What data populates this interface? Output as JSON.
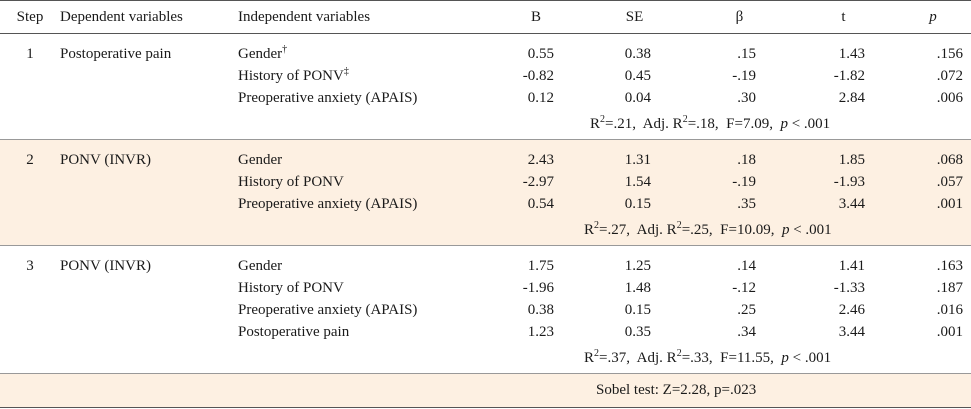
{
  "headers": {
    "step": "Step",
    "dependent": "Dependent variables",
    "independent": "Independent variables",
    "b": "B",
    "se": "SE",
    "beta": "β",
    "t": "t",
    "p": "p"
  },
  "steps": [
    {
      "step": "1",
      "dependent": "Postoperative pain",
      "rows": [
        {
          "iv": "Gender",
          "mark": "†",
          "b": "0.55",
          "se": "0.38",
          "beta": ".15",
          "t": "1.43",
          "p": ".156"
        },
        {
          "iv": "History of PONV",
          "mark": "‡",
          "b": "-0.82",
          "se": "0.45",
          "beta": "-.19",
          "t": "-1.82",
          "p": ".072"
        },
        {
          "iv": "Preoperative anxiety (APAIS)",
          "mark": "",
          "b": "0.12",
          "se": "0.04",
          "beta": ".30",
          "t": "2.84",
          "p": ".006"
        }
      ],
      "summary": {
        "r2": "=.21,",
        "adj_label": "Adj. R",
        "adj_r2": "=.18,",
        "f": "F=7.09,",
        "p_label": "p",
        "p_val": "< .001"
      }
    },
    {
      "step": "2",
      "dependent": "PONV (INVR)",
      "rows": [
        {
          "iv": "Gender",
          "mark": "",
          "b": "2.43",
          "se": "1.31",
          "beta": ".18",
          "t": "1.85",
          "p": ".068"
        },
        {
          "iv": "History of PONV",
          "mark": "",
          "b": "-2.97",
          "se": "1.54",
          "beta": "-.19",
          "t": "-1.93",
          "p": ".057"
        },
        {
          "iv": "Preoperative anxiety (APAIS)",
          "mark": "",
          "b": "0.54",
          "se": "0.15",
          "beta": ".35",
          "t": "3.44",
          "p": ".001"
        }
      ],
      "summary": {
        "r2": "=.27,",
        "adj_label": "Adj. R",
        "adj_r2": "=.25,",
        "f": "F=10.09,",
        "p_label": "p",
        "p_val": "< .001"
      }
    },
    {
      "step": "3",
      "dependent": "PONV (INVR)",
      "rows": [
        {
          "iv": "Gender",
          "mark": "",
          "b": "1.75",
          "se": "1.25",
          "beta": ".14",
          "t": "1.41",
          "p": ".163"
        },
        {
          "iv": "History of PONV",
          "mark": "",
          "b": "-1.96",
          "se": "1.48",
          "beta": "-.12",
          "t": "-1.33",
          "p": ".187"
        },
        {
          "iv": "Preoperative anxiety (APAIS)",
          "mark": "",
          "b": "0.38",
          "se": "0.15",
          "beta": ".25",
          "t": "2.46",
          "p": ".016"
        },
        {
          "iv": "Postoperative pain",
          "mark": "",
          "b": "1.23",
          "se": "0.35",
          "beta": ".34",
          "t": "3.44",
          "p": ".001"
        }
      ],
      "summary": {
        "r2": "=.37,",
        "adj_label": "Adj. R",
        "adj_r2": "=.33,",
        "f": "F=11.55,",
        "p_label": "p",
        "p_val": "< .001"
      }
    }
  ],
  "r_label": "R",
  "r_sup": "2",
  "sobel": "Sobel  test:  Z=2.28,  p=.023"
}
